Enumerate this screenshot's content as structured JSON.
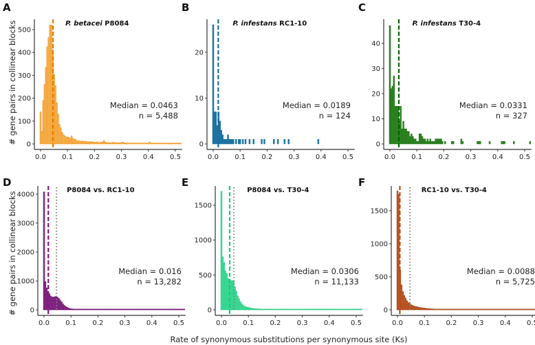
{
  "ylabel": "# gene pairs in collinear blocks",
  "xlabel": "Rate of synonymous substitutions per synonymous site (Ks)",
  "reference_median_line_color": "#808080",
  "chart_data": [
    {
      "type": "bar",
      "letter": "A",
      "title_italic": "P. betacei",
      "title_rest": " P8084",
      "median_label": "Median = 0.0463",
      "n_label": "n = 5,488",
      "median": 0.0463,
      "reference_median": null,
      "fill": "#f7b760",
      "stroke": "#ef8a00",
      "median_color": "#e57e00",
      "xlim": [
        0,
        0.525
      ],
      "ylim": [
        0,
        539
      ],
      "xticks": [
        "0.0",
        "0.1",
        "0.2",
        "0.3",
        "0.4",
        "0.5"
      ],
      "yticks": [
        0,
        100,
        200,
        300,
        400,
        500
      ],
      "bin_width": 0.005,
      "counts": [
        140,
        55,
        190,
        260,
        335,
        425,
        465,
        520,
        520,
        410,
        305,
        255,
        180,
        130,
        85,
        70,
        50,
        40,
        35,
        30,
        30,
        28,
        25,
        35,
        25,
        20,
        20,
        12,
        15,
        12,
        12,
        12,
        12,
        10,
        12,
        8,
        10,
        10,
        10,
        8,
        8,
        6,
        10,
        6,
        6,
        8,
        8,
        15,
        8,
        6,
        6,
        5,
        5,
        5,
        8,
        5,
        5,
        5,
        5,
        5,
        6,
        8,
        5,
        4,
        4,
        4,
        4,
        3,
        3,
        3,
        3,
        3,
        4,
        4,
        3,
        3,
        3,
        3,
        3,
        4,
        3,
        8,
        3,
        3,
        3,
        3,
        2,
        3,
        2,
        2,
        3,
        2,
        2,
        2,
        2,
        2,
        3,
        2,
        2,
        2,
        2,
        3,
        2,
        2,
        2
      ]
    },
    {
      "type": "bar",
      "letter": "B",
      "title_italic": "P. infestans",
      "title_rest": " RC1-10",
      "median_label": "Median = 0.0189",
      "n_label": "n = 124",
      "median": 0.0189,
      "reference_median": null,
      "fill": "#1f77a8",
      "stroke": "#1a6a96",
      "median_color": "#1a6f9a",
      "xlim": [
        0,
        0.525
      ],
      "ylim": [
        0,
        26.9
      ],
      "xticks": [
        "0.0",
        "0.1",
        "0.2",
        "0.3",
        "0.4",
        "0.5"
      ],
      "yticks": [
        0,
        10,
        20
      ],
      "bin_width": 0.005,
      "counts": [
        26,
        7,
        7,
        4,
        7,
        5,
        3,
        2,
        1,
        1,
        1,
        2,
        1,
        1,
        1,
        1,
        0,
        1,
        0,
        1,
        1,
        0,
        1,
        0,
        1,
        0,
        0,
        1,
        0,
        0,
        1,
        0,
        0,
        0,
        0,
        0,
        1,
        0,
        1,
        0,
        0,
        0,
        0,
        0,
        0,
        1,
        0,
        0,
        1,
        0,
        0,
        0,
        0,
        1,
        0,
        0,
        1,
        0,
        0,
        0,
        0,
        0,
        0,
        0,
        0,
        0,
        0,
        0,
        0,
        0,
        0,
        0,
        0,
        0,
        0,
        0,
        0,
        0,
        1,
        0,
        0,
        0,
        0,
        0,
        0,
        0,
        0,
        0,
        0,
        0,
        0,
        0,
        0,
        0,
        0,
        0,
        0,
        0,
        0,
        0,
        0,
        0,
        0,
        0,
        0
      ]
    },
    {
      "type": "bar",
      "letter": "C",
      "title_italic": "P. infestans",
      "title_rest": " T30-4",
      "median_label": "Median = 0.0331",
      "n_label": "n = 327",
      "median": 0.0331,
      "reference_median": null,
      "fill": "#2f8a24",
      "stroke": "#1f6a17",
      "median_color": "#006400",
      "xlim": [
        0,
        0.525
      ],
      "ylim": [
        0,
        49
      ],
      "xticks": [
        "0.0",
        "0.1",
        "0.2",
        "0.3",
        "0.4",
        "0.5"
      ],
      "yticks": [
        0,
        10,
        20,
        30,
        40
      ],
      "bin_width": 0.005,
      "counts": [
        47,
        22,
        23,
        27,
        15,
        15,
        15,
        9,
        15,
        6,
        9,
        6,
        6,
        5,
        5,
        3,
        4,
        3,
        2,
        2,
        1,
        1,
        4,
        4,
        3,
        2,
        2,
        1,
        2,
        1,
        2,
        1,
        1,
        1,
        2,
        2,
        2,
        2,
        2,
        1,
        0,
        1,
        0,
        0,
        0,
        0,
        1,
        1,
        0,
        0,
        0,
        0,
        0,
        2,
        1,
        0,
        0,
        0,
        0,
        0,
        0,
        0,
        0,
        0,
        0,
        1,
        1,
        1,
        0,
        0,
        0,
        0,
        0,
        0,
        1,
        0,
        0,
        0,
        0,
        0,
        0,
        0,
        0,
        1,
        1,
        1,
        0,
        0,
        0,
        0,
        0,
        0,
        1,
        0,
        0,
        0,
        0,
        0,
        0,
        0,
        0,
        0,
        0,
        0,
        1
      ]
    },
    {
      "type": "bar",
      "letter": "D",
      "title_italic": "",
      "title_rest": "P8084 vs. RC1-10",
      "median_label": "Median = 0.016",
      "n_label": "n = 13,282",
      "median": 0.016,
      "reference_median": 0.0463,
      "fill": "#8a2a8a",
      "stroke": "#6a106a",
      "median_color": "#7a1a7a",
      "xlim": [
        0,
        0.525
      ],
      "ylim": [
        0,
        4238
      ],
      "xticks": [
        "0.0",
        "0.1",
        "0.2",
        "0.3",
        "0.4",
        "0.5"
      ],
      "yticks": [
        0,
        1000,
        2000,
        3000,
        4000
      ],
      "bin_width": 0.005,
      "counts": [
        4080,
        980,
        760,
        640,
        560,
        480,
        450,
        440,
        460,
        460,
        440,
        400,
        340,
        280,
        210,
        160,
        120,
        90,
        70,
        50,
        40,
        35,
        30,
        28,
        25,
        22,
        20,
        18,
        16,
        15,
        14,
        14,
        13,
        12,
        12,
        11,
        11,
        10,
        10,
        10,
        9,
        9,
        9,
        8,
        8,
        8,
        8,
        7,
        7,
        7,
        7,
        7,
        6,
        6,
        6,
        6,
        6,
        6,
        5,
        5,
        5,
        5,
        5,
        5,
        5,
        5,
        4,
        4,
        4,
        4,
        4,
        4,
        4,
        4,
        4,
        4,
        4,
        3,
        3,
        3,
        3,
        3,
        3,
        3,
        3,
        3,
        3,
        3,
        3,
        3,
        3,
        3,
        3,
        3,
        3,
        3,
        2,
        2,
        2,
        2,
        2,
        2,
        2,
        2,
        2
      ]
    },
    {
      "type": "bar",
      "letter": "E",
      "title_italic": "",
      "title_rest": "P8084 vs. T30-4",
      "median_label": "Median = 0.0306",
      "n_label": "n = 11,133",
      "median": 0.0306,
      "reference_median": 0.0463,
      "fill": "#3ddc97",
      "stroke": "#2cc883",
      "median_color": "#1ec87a",
      "xlim": [
        0,
        0.525
      ],
      "ylim": [
        0,
        1756
      ],
      "xticks": [
        "0.0",
        "0.1",
        "0.2",
        "0.3",
        "0.4",
        "0.5"
      ],
      "yticks": [
        0,
        500,
        1000,
        1500
      ],
      "bin_width": 0.005,
      "counts": [
        1700,
        760,
        680,
        560,
        520,
        450,
        420,
        420,
        420,
        410,
        330,
        270,
        200,
        160,
        120,
        90,
        70,
        55,
        45,
        40,
        35,
        30,
        25,
        22,
        20,
        18,
        16,
        15,
        14,
        13,
        12,
        12,
        11,
        11,
        10,
        10,
        9,
        9,
        9,
        8,
        8,
        8,
        7,
        7,
        7,
        7,
        6,
        6,
        6,
        6,
        6,
        5,
        5,
        5,
        5,
        5,
        5,
        5,
        4,
        4,
        4,
        4,
        4,
        4,
        4,
        4,
        4,
        3,
        3,
        3,
        3,
        3,
        3,
        3,
        3,
        3,
        3,
        3,
        3,
        3,
        3,
        3,
        3,
        3,
        2,
        2,
        2,
        2,
        2,
        2,
        2,
        2,
        2,
        2,
        2,
        2,
        2,
        2,
        2,
        2,
        2,
        2,
        2,
        2,
        2
      ]
    },
    {
      "type": "bar",
      "letter": "F",
      "title_italic": "",
      "title_rest": "RC1-10 vs. T30-4",
      "median_label": "Median = 0.0088",
      "n_label": "n = 5,725",
      "median": 0.0088,
      "reference_median": 0.0463,
      "fill": "#c25a28",
      "stroke": "#a0461a",
      "median_color": "#b5501e",
      "xlim": [
        0,
        0.525
      ],
      "ylim": [
        0,
        1854
      ],
      "xticks": [
        "0.0",
        "0.1",
        "0.2",
        "0.3",
        "0.4",
        "0.5"
      ],
      "yticks": [
        0,
        500,
        1000,
        1500
      ],
      "bin_width": 0.005,
      "counts": [
        1800,
        1750,
        600,
        380,
        280,
        220,
        180,
        140,
        110,
        100,
        80,
        70,
        60,
        55,
        50,
        45,
        40,
        35,
        32,
        30,
        28,
        25,
        22,
        20,
        18,
        16,
        15,
        14,
        13,
        12,
        12,
        11,
        11,
        10,
        10,
        10,
        9,
        9,
        9,
        8,
        8,
        8,
        7,
        7,
        7,
        7,
        6,
        6,
        6,
        6,
        6,
        5,
        5,
        5,
        5,
        5,
        5,
        4,
        4,
        4,
        4,
        4,
        4,
        4,
        3,
        3,
        3,
        3,
        3,
        3,
        3,
        3,
        3,
        3,
        3,
        3,
        3,
        3,
        2,
        2,
        2,
        2,
        2,
        2,
        2,
        2,
        2,
        2,
        2,
        2,
        2,
        2,
        2,
        2,
        2,
        2,
        2,
        2,
        2,
        2,
        2,
        2,
        2,
        2,
        2
      ]
    }
  ]
}
